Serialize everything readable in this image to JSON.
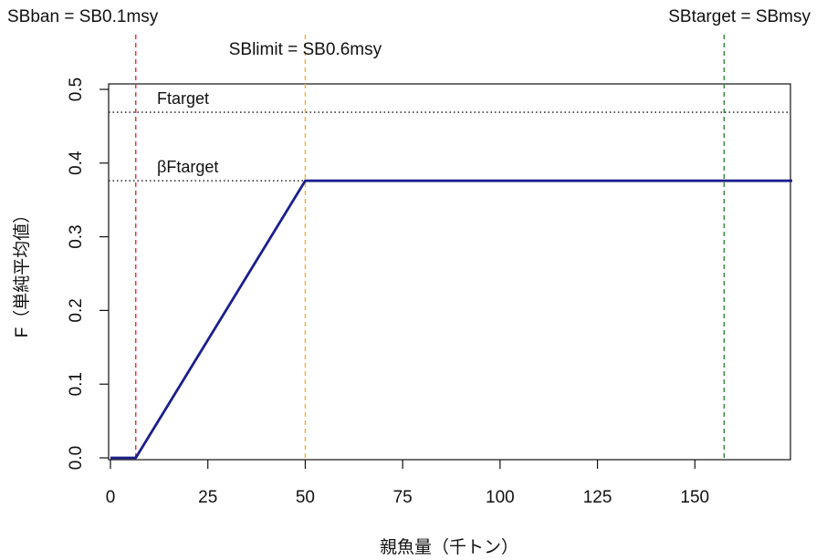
{
  "chart_data": {
    "type": "line",
    "xlabel": "親魚量（千トン）",
    "ylabel": "F（単純平均値）",
    "xlim": [
      0,
      175
    ],
    "ylim": [
      0,
      0.5
    ],
    "x_ticks": [
      0,
      25,
      50,
      75,
      100,
      125,
      150
    ],
    "x_tick_labels": [
      "0",
      "25",
      "50",
      "75",
      "100",
      "125",
      "150"
    ],
    "y_ticks": [
      0,
      0.1,
      0.2,
      0.3,
      0.4,
      0.5
    ],
    "y_tick_labels": [
      "0.0",
      "0.1",
      "0.2",
      "0.3",
      "0.4",
      "0.5"
    ],
    "grid": false,
    "series": [
      {
        "color": "#1a1f8c",
        "x": [
          0,
          6.5,
          50,
          175
        ],
        "y": [
          0,
          0,
          0.376,
          0.376
        ]
      }
    ],
    "vlines": [
      {
        "x": 6.5,
        "label": "SBban = SB0.1msy",
        "color": "#e03030"
      },
      {
        "x": 50,
        "label": "SBlimit = SB0.6msy",
        "color": "#f0b030"
      },
      {
        "x": 157.5,
        "label": "SBtarget = SBmsy",
        "color": "#2e8a2e"
      }
    ],
    "hlines": [
      {
        "y": 0.469,
        "label": "Ftarget",
        "color": "#111111"
      },
      {
        "y": 0.376,
        "label": "βFtarget",
        "color": "#111111"
      }
    ]
  }
}
